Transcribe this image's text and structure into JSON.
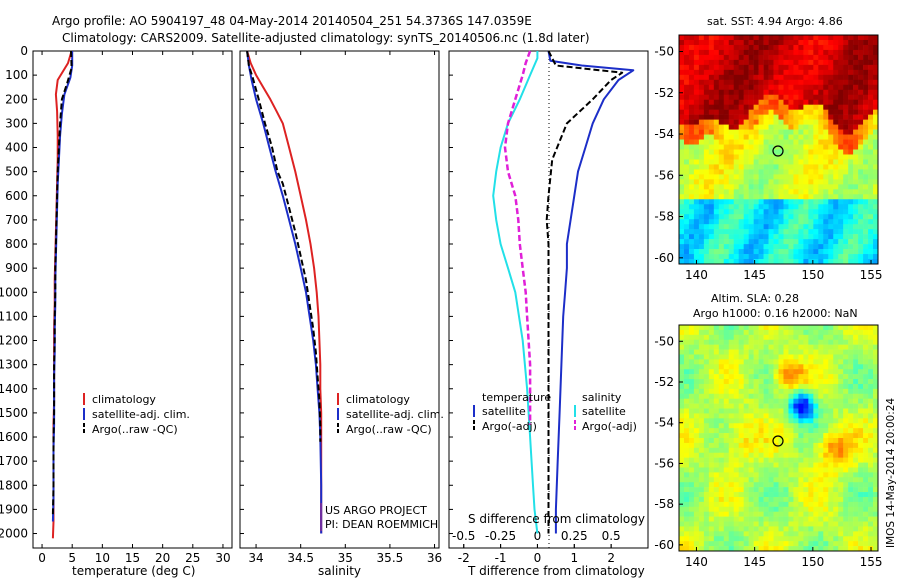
{
  "title": {
    "line1": "Argo profile: AO 5904197_48 04-May-2014 20140504_251 54.3736S 147.0359E",
    "line2": "Climatology: CARS2009. Satellite-adjusted climatology: synTS_20140506.nc (1.8d later)"
  },
  "colors": {
    "climatology": "#dd2222",
    "satellite": "#1c2ec8",
    "argo": "#000000",
    "cyan": "#22e0e8",
    "magenta": "#e020d8"
  },
  "depth_ticks": [
    "0",
    "100",
    "200",
    "300",
    "400",
    "500",
    "600",
    "700",
    "800",
    "900",
    "1000",
    "1100",
    "1200",
    "1300",
    "1400",
    "1500",
    "1600",
    "1700",
    "1800",
    "1900",
    "2000"
  ],
  "temp_panel": {
    "xlabel": "temperature (deg C)",
    "xticks": [
      "0",
      "5",
      "10",
      "15",
      "20",
      "25",
      "30"
    ],
    "legend": [
      "climatology",
      "satellite-adj. clim.",
      "Argo(..raw -QC)"
    ]
  },
  "sal_panel": {
    "xlabel": "salinity",
    "xticks": [
      "34",
      "34.5",
      "35",
      "35.5",
      "36"
    ],
    "legend": [
      "climatology",
      "satellite-adj. clim.",
      "Argo(..raw -QC)"
    ],
    "credit_line1": "US ARGO PROJECT",
    "credit_line2": "PI: DEAN ROEMMICH"
  },
  "diff_panel": {
    "xlabel_bottom": "T difference from climatology",
    "xlabel_top": "S difference from climatology",
    "xticks_t": [
      "-2",
      "-1",
      "0",
      "1",
      "2"
    ],
    "xticks_s": [
      "-0.5",
      "-0.25",
      "0",
      "0.25",
      "0.5"
    ],
    "legend_t_header": "temperature",
    "legend_s_header": "salinity",
    "legend_satellite": "satellite",
    "legend_argo": "Argo(-adj)"
  },
  "map_sst": {
    "title": "sat. SST: 4.94  Argo: 4.86",
    "yticks": [
      "-50",
      "-52",
      "-54",
      "-56",
      "-58",
      "-60"
    ],
    "xticks": [
      "140",
      "145",
      "150",
      "155"
    ]
  },
  "map_sla": {
    "title_line1": "Altim. SLA: 0.28",
    "title_line2": "Argo h1000: 0.16 h2000: NaN",
    "yticks": [
      "-50",
      "-52",
      "-54",
      "-56",
      "-58",
      "-60"
    ],
    "xticks": [
      "140",
      "145",
      "150",
      "155"
    ]
  },
  "imos_label": "IMOS 14-May-2014 20:00:24",
  "chart_data": [
    {
      "type": "line",
      "title": "",
      "xlabel": "temperature (deg C)",
      "ylabel": "",
      "xlim": [
        -1.5,
        31.5
      ],
      "ylim": [
        2060,
        0
      ],
      "series": [
        {
          "name": "climatology",
          "x": [
            4.9,
            4.3,
            2.6,
            2.3,
            2.5,
            2.6,
            2.6,
            2.5,
            2.4,
            2.3,
            2.2,
            2.1,
            2.1,
            2.0,
            2.0,
            2.0,
            2.0,
            1.9,
            1.9,
            1.9,
            1.9,
            1.9,
            1.8
          ],
          "y": [
            0,
            50,
            120,
            180,
            250,
            350,
            450,
            550,
            650,
            750,
            850,
            950,
            1050,
            1150,
            1250,
            1350,
            1450,
            1550,
            1650,
            1750,
            1850,
            1950,
            2020
          ]
        },
        {
          "name": "satellite-adj. clim.",
          "x": [
            5.0,
            5.0,
            4.7,
            3.7,
            3.3,
            3.0,
            2.8,
            2.6,
            2.5,
            2.4,
            2.3,
            2.2,
            2.2,
            2.1,
            2.1,
            2.0,
            2.0,
            2.0,
            1.9,
            1.9,
            1.9,
            1.8
          ],
          "y": [
            0,
            60,
            110,
            180,
            260,
            350,
            450,
            550,
            650,
            750,
            850,
            950,
            1050,
            1150,
            1250,
            1350,
            1450,
            1550,
            1650,
            1750,
            1850,
            1950
          ]
        },
        {
          "name": "Argo(..raw -QC)",
          "x": [
            4.8,
            4.9,
            4.2,
            3.3,
            3.0,
            2.8,
            2.6,
            2.5,
            2.4,
            2.3,
            2.2,
            2.2,
            2.1,
            2.1,
            2.0,
            2.0,
            2.0,
            1.9,
            1.9,
            1.9,
            1.8
          ],
          "y": [
            0,
            70,
            130,
            200,
            300,
            400,
            500,
            600,
            700,
            800,
            900,
            1000,
            1100,
            1200,
            1300,
            1400,
            1500,
            1600,
            1700,
            1800,
            1920
          ]
        }
      ]
    },
    {
      "type": "line",
      "title": "",
      "xlabel": "salinity",
      "ylabel": "",
      "xlim": [
        33.82,
        36.05
      ],
      "ylim": [
        2060,
        0
      ],
      "series": [
        {
          "name": "climatology",
          "x": [
            33.9,
            33.94,
            34.0,
            34.08,
            34.16,
            34.23,
            34.3,
            34.37,
            34.44,
            34.5,
            34.56,
            34.61,
            34.65,
            34.68,
            34.7,
            34.71,
            34.72,
            34.72,
            34.73,
            34.73,
            34.73,
            34.73
          ],
          "y": [
            0,
            50,
            100,
            150,
            200,
            250,
            300,
            400,
            500,
            600,
            700,
            800,
            900,
            1000,
            1100,
            1200,
            1300,
            1400,
            1500,
            1600,
            1800,
            2000
          ]
        },
        {
          "name": "satellite-adj. clim.",
          "x": [
            33.9,
            33.92,
            33.95,
            34.0,
            34.08,
            34.15,
            34.22,
            34.3,
            34.37,
            34.44,
            34.5,
            34.56,
            34.6,
            34.64,
            34.67,
            34.69,
            34.71,
            34.72,
            34.73,
            34.73
          ],
          "y": [
            0,
            60,
            120,
            200,
            300,
            400,
            500,
            600,
            700,
            800,
            900,
            1000,
            1100,
            1200,
            1300,
            1400,
            1500,
            1600,
            1800,
            2000
          ]
        },
        {
          "name": "Argo(..raw -QC)",
          "x": [
            33.9,
            33.92,
            33.97,
            34.03,
            34.1,
            34.18,
            34.24,
            34.3,
            34.37,
            34.44,
            34.5,
            34.56,
            34.6,
            34.64,
            34.67,
            34.69,
            34.71,
            34.72,
            34.72
          ],
          "y": [
            0,
            60,
            120,
            200,
            300,
            400,
            500,
            550,
            650,
            750,
            850,
            950,
            1050,
            1150,
            1250,
            1350,
            1450,
            1550,
            1620
          ]
        }
      ]
    },
    {
      "type": "line",
      "title": "",
      "xlabel": "T difference from climatology",
      "ylabel": "",
      "xlim": [
        -2.4,
        3.0
      ],
      "ylim": [
        2060,
        0
      ],
      "series": [
        {
          "name": "temperature satellite",
          "x": [
            0.3,
            0.35,
            1.2,
            2.6,
            2.2,
            1.8,
            1.5,
            1.3,
            1.1,
            1.0,
            0.9,
            0.8,
            0.8,
            0.75,
            0.7,
            0.65,
            0.6,
            0.55,
            0.5,
            0.5
          ],
          "y": [
            0,
            40,
            60,
            80,
            120,
            200,
            300,
            400,
            500,
            600,
            700,
            800,
            900,
            1000,
            1100,
            1300,
            1500,
            1700,
            1900,
            2000
          ]
        },
        {
          "name": "temperature Argo(-adj)",
          "x": [
            0.3,
            0.5,
            2.3,
            2.0,
            1.5,
            0.8,
            0.4,
            0.3,
            0.25,
            0.3,
            0.3,
            0.3,
            0.3,
            0.3,
            0.3,
            0.3,
            0.3,
            0.3
          ],
          "y": [
            0,
            60,
            90,
            120,
            200,
            300,
            450,
            600,
            700,
            800,
            900,
            1100,
            1300,
            1500,
            1700,
            1800,
            1900,
            2000
          ]
        }
      ]
    },
    {
      "type": "line",
      "title": "",
      "xlabel": "S difference from climatology",
      "ylabel": "",
      "xlim": [
        -0.6,
        0.75
      ],
      "ylim": [
        2060,
        0
      ],
      "series": [
        {
          "name": "salinity satellite",
          "x": [
            0.0,
            0.0,
            -0.05,
            -0.12,
            -0.2,
            -0.25,
            -0.28,
            -0.3,
            -0.28,
            -0.25,
            -0.2,
            -0.15,
            -0.1,
            -0.07,
            -0.05,
            -0.03,
            -0.02,
            0.0
          ],
          "y": [
            0,
            30,
            100,
            200,
            300,
            400,
            500,
            600,
            700,
            800,
            900,
            1000,
            1200,
            1400,
            1600,
            1800,
            1900,
            2000
          ]
        },
        {
          "name": "salinity Argo(-adj)",
          "x": [
            -0.05,
            -0.08,
            -0.1,
            -0.15,
            -0.2,
            -0.22,
            -0.2,
            -0.15,
            -0.13,
            -0.12,
            -0.1,
            -0.08,
            -0.07,
            -0.06,
            -0.05,
            -0.05,
            -0.05
          ],
          "y": [
            0,
            50,
            100,
            200,
            300,
            400,
            500,
            600,
            700,
            800,
            900,
            1000,
            1100,
            1200,
            1300,
            1400,
            1550
          ]
        }
      ]
    }
  ]
}
